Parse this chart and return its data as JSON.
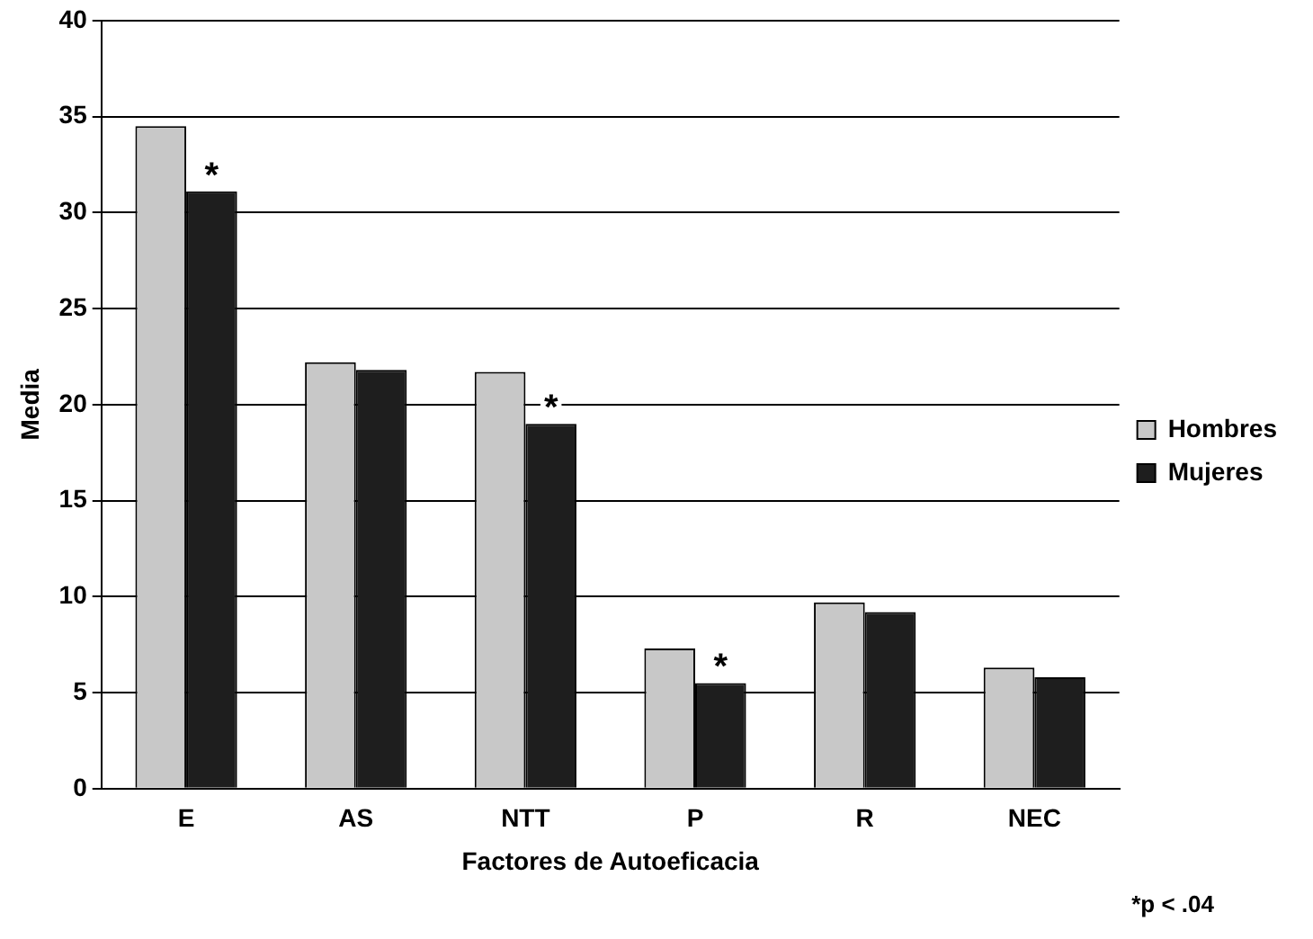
{
  "chart_data": {
    "type": "bar",
    "xlabel": "Factores de Autoeficacia",
    "ylabel": "Media",
    "categories": [
      "E",
      "AS",
      "NTT",
      "P",
      "R",
      "NEC"
    ],
    "series": [
      {
        "name": "Hombres",
        "color": "#c8c8c8",
        "values": [
          34.5,
          22.2,
          21.7,
          7.3,
          9.7,
          6.3
        ]
      },
      {
        "name": "Mujeres",
        "color": "#1e1e1e",
        "values": [
          31.1,
          21.8,
          19.0,
          5.5,
          9.2,
          5.8
        ]
      }
    ],
    "ylim": [
      0,
      40
    ],
    "yticks": [
      0,
      5,
      10,
      15,
      20,
      25,
      30,
      35,
      40
    ],
    "grid": "y",
    "legend": "right",
    "annotations": [
      {
        "text": "*",
        "x": "E",
        "y": 31.1
      },
      {
        "text": "*",
        "x": "NTT",
        "y": 19.0
      },
      {
        "text": "*",
        "x": "P",
        "y": 5.5
      },
      "*p < .04"
    ]
  }
}
